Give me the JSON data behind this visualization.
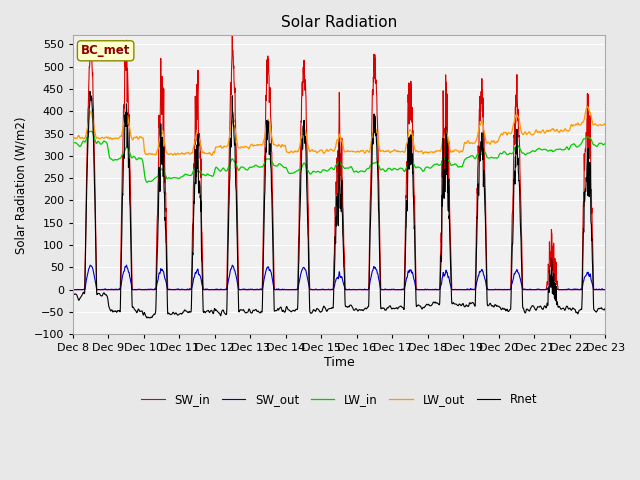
{
  "title": "Solar Radiation",
  "xlabel": "Time",
  "ylabel": "Solar Radiation (W/m2)",
  "ylim": [
    -100,
    570
  ],
  "yticks": [
    -100,
    -50,
    0,
    50,
    100,
    150,
    200,
    250,
    300,
    350,
    400,
    450,
    500,
    550
  ],
  "station_label": "BC_met",
  "line_colors": {
    "SW_in": "#dd0000",
    "SW_out": "#0000cc",
    "LW_in": "#00cc00",
    "LW_out": "#ff9900",
    "Rnet": "#000000"
  },
  "legend_labels": [
    "SW_in",
    "SW_out",
    "LW_in",
    "LW_out",
    "Rnet"
  ],
  "bg_color": "#e8e8e8",
  "plot_bg_color": "#f0f0f0",
  "n_days": 15,
  "start_day": 8
}
